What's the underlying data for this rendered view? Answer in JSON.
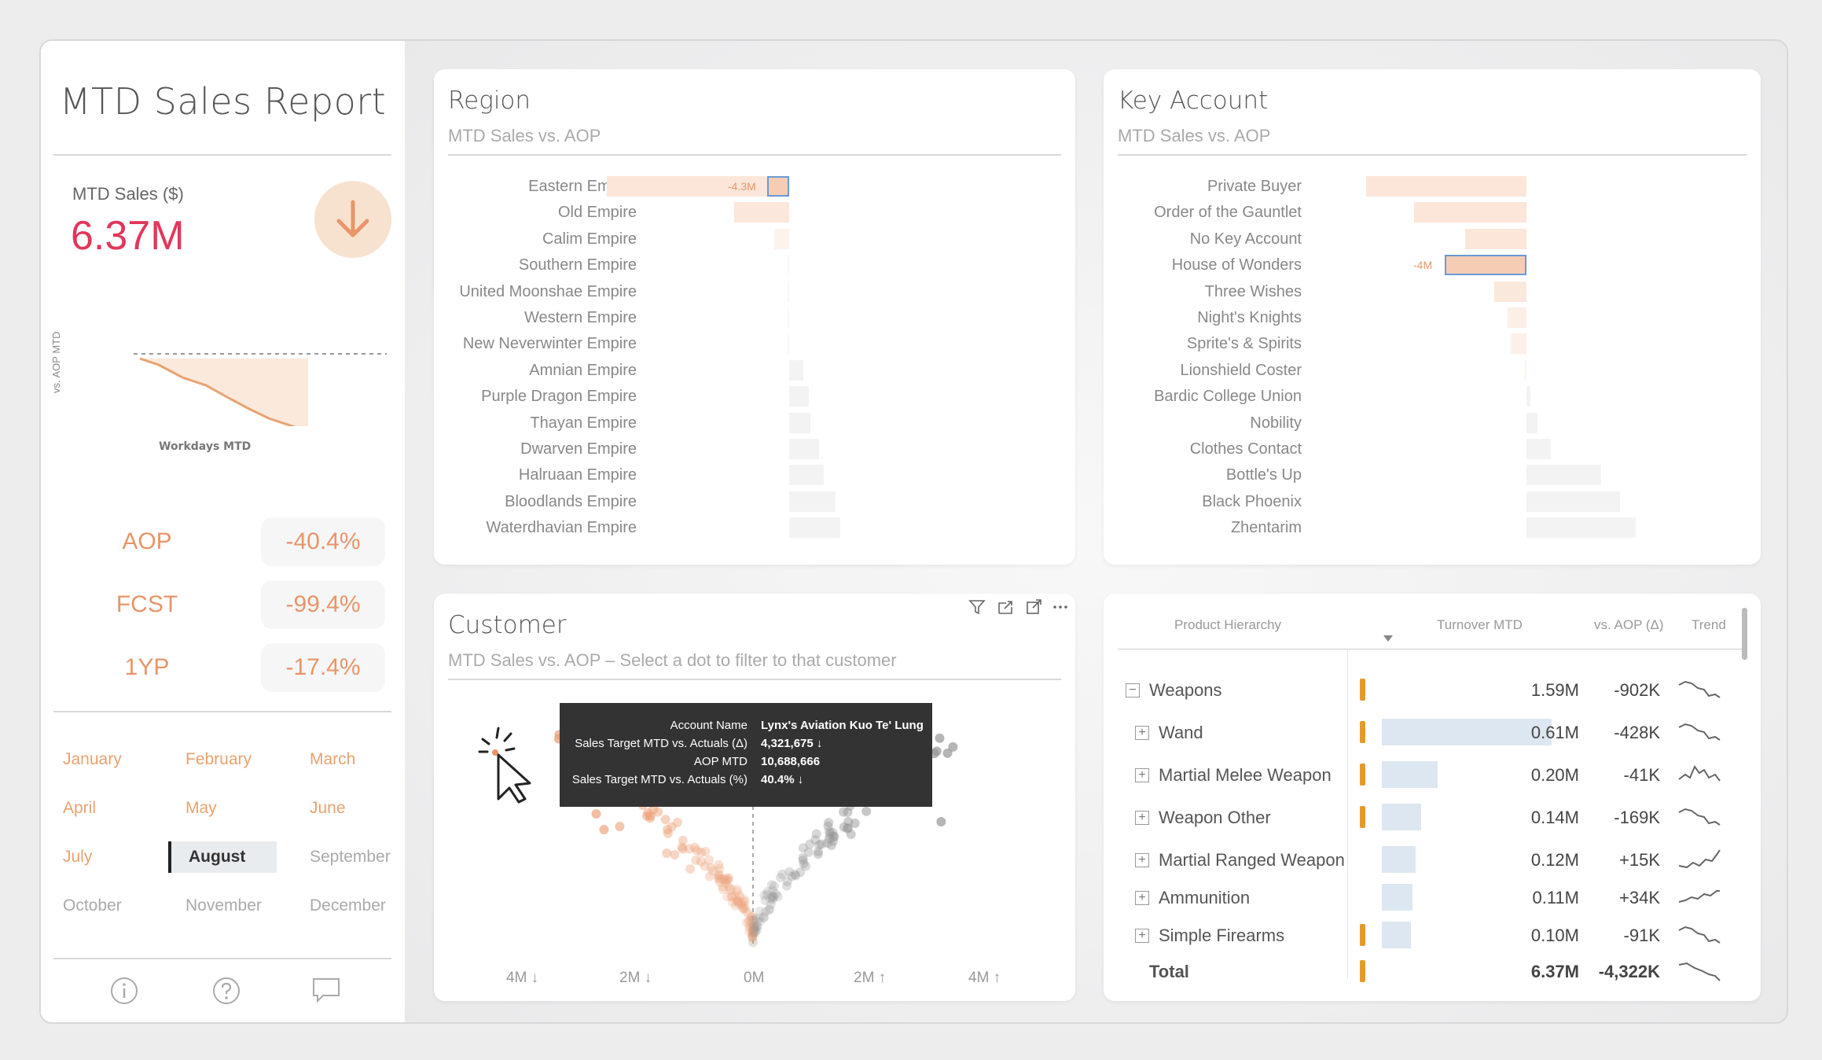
{
  "report": {
    "title": "MTD Sales Report"
  },
  "kpi": {
    "label": "MTD Sales ($)",
    "value": "6.37M",
    "chart_ylabel": "vs. AOP MTD",
    "chart_xlabel": "Workdays MTD"
  },
  "variances": [
    {
      "label": "AOP",
      "value": "-40.4%"
    },
    {
      "label": "FCST",
      "value": "-99.4%"
    },
    {
      "label": "1YP",
      "value": "-17.4%"
    }
  ],
  "months": {
    "items": [
      "January",
      "February",
      "March",
      "April",
      "May",
      "June",
      "July",
      "August",
      "September",
      "October",
      "November",
      "December"
    ],
    "selected": "August"
  },
  "region": {
    "title": "Region",
    "subtitle": "MTD Sales vs. AOP",
    "highlight_label": "-4.3M",
    "rows": [
      {
        "label": "Eastern Empire",
        "value": -4.3
      },
      {
        "label": "Old Empire",
        "value": -1.3
      },
      {
        "label": "Calim Empire",
        "value": -0.35
      },
      {
        "label": "Southern Empire",
        "value": -0.03
      },
      {
        "label": "United Moonshae Empire",
        "value": -0.02
      },
      {
        "label": "Western Empire",
        "value": -0.01
      },
      {
        "label": "New Neverwinter Empire",
        "value": -0.04
      },
      {
        "label": "Amnian Empire",
        "value": 0.33
      },
      {
        "label": "Purple Dragon Empire",
        "value": 0.46
      },
      {
        "label": "Thayan Empire",
        "value": 0.5
      },
      {
        "label": "Dwarven Empire",
        "value": 0.7
      },
      {
        "label": "Halruaan Empire",
        "value": 0.82
      },
      {
        "label": "Bloodlands Empire",
        "value": 1.1
      },
      {
        "label": "Waterdhavian Empire",
        "value": 1.2
      }
    ]
  },
  "key_account": {
    "title": "Key Account",
    "subtitle": "MTD Sales vs. AOP",
    "highlight_label": "-4M",
    "rows": [
      {
        "label": "Private Buyer",
        "value": -6.0
      },
      {
        "label": "Order of the Gauntlet",
        "value": -4.2
      },
      {
        "label": "No Key Account",
        "value": -2.3
      },
      {
        "label": "House of Wonders",
        "value": -2.1
      },
      {
        "label": "Three Wishes",
        "value": -1.2
      },
      {
        "label": "Night's Knights",
        "value": -0.7
      },
      {
        "label": "Sprite's & Spirits",
        "value": -0.6
      },
      {
        "label": "Lionshield Coster",
        "value": -0.1
      },
      {
        "label": "Bardic College Union",
        "value": 0.15
      },
      {
        "label": "Nobility",
        "value": 0.4
      },
      {
        "label": "Clothes Contact",
        "value": 0.9
      },
      {
        "label": "Bottle's Up",
        "value": 2.8
      },
      {
        "label": "Black Phoenix",
        "value": 3.5
      },
      {
        "label": "Zhentarim",
        "value": 4.1
      }
    ]
  },
  "customer": {
    "title": "Customer",
    "subtitle": "MTD Sales vs. AOP – Select a dot to filter to that customer",
    "x_ticks": [
      "4M ↓",
      "2M ↓",
      "0M",
      "2M ↑",
      "4M ↑"
    ],
    "tooltip": [
      {
        "key": "Account Name",
        "value": "Lynx's Aviation Kuo Te' Lung"
      },
      {
        "key": "Sales Target MTD vs. Actuals (Δ)",
        "value": "4,321,675 ↓"
      },
      {
        "key": "AOP MTD",
        "value": "10,688,666"
      },
      {
        "key": "Sales Target MTD vs. Actuals (%)",
        "value": "40.4% ↓"
      }
    ]
  },
  "products": {
    "headers": {
      "hierarchy": "Product Hierarchy",
      "turnover": "Turnover MTD",
      "aop": "vs. AOP (Δ)",
      "trend": "Trend"
    },
    "rows": [
      {
        "name": "Weapons",
        "turnover": "1.59M",
        "aop": "-902K",
        "warn": true,
        "bar": 0,
        "expand": "−",
        "indent": 0
      },
      {
        "name": "Wand",
        "turnover": "0.61M",
        "aop": "-428K",
        "warn": true,
        "bar": 1.0,
        "expand": "+",
        "indent": 1
      },
      {
        "name": "Martial Melee Weapon",
        "turnover": "0.20M",
        "aop": "-41K",
        "warn": true,
        "bar": 0.33,
        "expand": "+",
        "indent": 1
      },
      {
        "name": "Weapon Other",
        "turnover": "0.14M",
        "aop": "-169K",
        "warn": true,
        "bar": 0.23,
        "expand": "+",
        "indent": 1
      },
      {
        "name": "Martial Ranged Weapon",
        "turnover": "0.12M",
        "aop": "+15K",
        "warn": false,
        "bar": 0.2,
        "expand": "+",
        "indent": 1
      },
      {
        "name": "Ammunition",
        "turnover": "0.11M",
        "aop": "+34K",
        "warn": false,
        "bar": 0.18,
        "expand": "+",
        "indent": 1
      },
      {
        "name": "Simple Firearms",
        "turnover": "0.10M",
        "aop": "-91K",
        "warn": true,
        "bar": 0.17,
        "expand": "+",
        "indent": 1
      }
    ],
    "total": {
      "name": "Total",
      "turnover": "6.37M",
      "aop": "-4,322K"
    }
  }
}
